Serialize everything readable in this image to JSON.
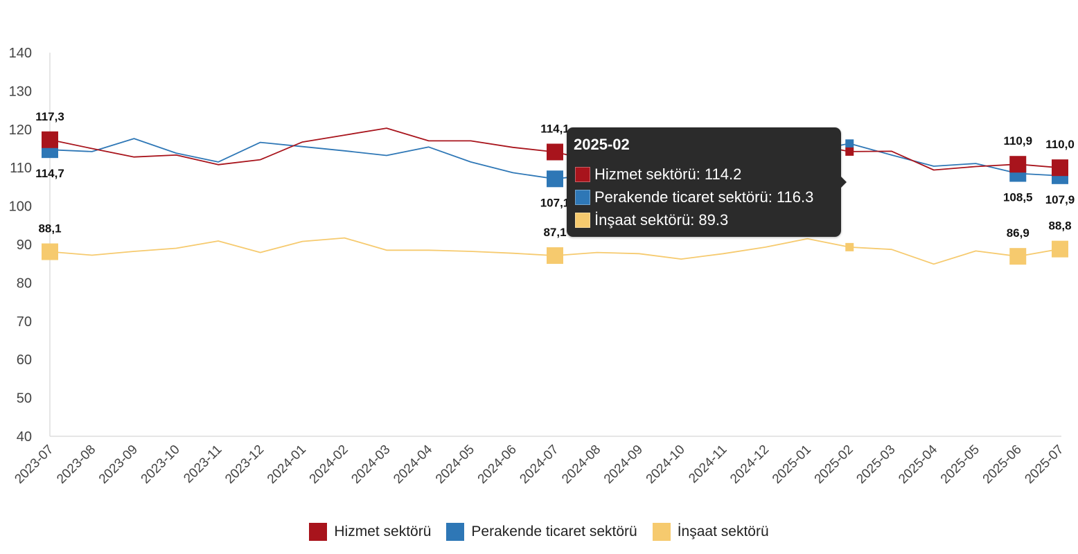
{
  "chart_data": {
    "type": "line",
    "categories": [
      "2023-07",
      "2023-08",
      "2023-09",
      "2023-10",
      "2023-11",
      "2023-12",
      "2024-01",
      "2024-02",
      "2024-03",
      "2024-04",
      "2024-05",
      "2024-06",
      "2024-07",
      "2024-08",
      "2024-09",
      "2024-10",
      "2024-11",
      "2024-12",
      "2025-01",
      "2025-02",
      "2025-03",
      "2025-04",
      "2025-05",
      "2025-06",
      "2025-07"
    ],
    "ylim": [
      40,
      140
    ],
    "yticks": [
      40,
      50,
      60,
      70,
      80,
      90,
      100,
      110,
      120,
      130,
      140
    ],
    "grid": false,
    "legend_position": "bottom",
    "series": [
      {
        "name": "Hizmet sektörü",
        "color": "#a8141c",
        "values": [
          117.3,
          115.0,
          112.8,
          113.3,
          110.8,
          112.1,
          116.7,
          118.5,
          120.3,
          117.0,
          117.0,
          115.3,
          114.1,
          111.6,
          112.4,
          114.2,
          110.9,
          113.4,
          116.3,
          114.2,
          114.3,
          109.4,
          110.3,
          110.9,
          110.0
        ],
        "labels": [
          {
            "index": 0,
            "text": "117,3",
            "pos": "above"
          },
          {
            "index": 12,
            "text": "114,1",
            "pos": "above"
          },
          {
            "index": 23,
            "text": "110,9",
            "pos": "above"
          },
          {
            "index": 24,
            "text": "110,0",
            "pos": "above"
          }
        ]
      },
      {
        "name": "Perakende ticaret sektörü",
        "color": "#2e77b6",
        "values": [
          114.7,
          114.2,
          117.6,
          113.8,
          111.5,
          116.6,
          115.5,
          114.4,
          113.2,
          115.4,
          111.5,
          108.7,
          107.1,
          108.3,
          110.4,
          111.6,
          111.4,
          112.8,
          114.2,
          116.3,
          113.3,
          110.4,
          111.1,
          108.5,
          107.9
        ],
        "labels": [
          {
            "index": 0,
            "text": "114,7",
            "pos": "below"
          },
          {
            "index": 12,
            "text": "107,1",
            "pos": "below"
          },
          {
            "index": 23,
            "text": "108,5",
            "pos": "below"
          },
          {
            "index": 24,
            "text": "107,9",
            "pos": "below"
          }
        ]
      },
      {
        "name": "İnşaat sektörü",
        "color": "#f6ca6e",
        "values": [
          88.1,
          87.2,
          88.2,
          89.0,
          90.9,
          87.9,
          90.8,
          91.7,
          88.5,
          88.5,
          88.2,
          87.7,
          87.1,
          87.9,
          87.6,
          86.2,
          87.6,
          89.3,
          91.5,
          89.3,
          88.7,
          84.9,
          88.3,
          86.9,
          88.8
        ],
        "labels": [
          {
            "index": 0,
            "text": "88,1",
            "pos": "above"
          },
          {
            "index": 12,
            "text": "87,1",
            "pos": "above"
          },
          {
            "index": 23,
            "text": "86,9",
            "pos": "above"
          },
          {
            "index": 24,
            "text": "88,8",
            "pos": "above"
          }
        ]
      }
    ],
    "tooltip": {
      "index": 19,
      "title": "2025-02",
      "rows": [
        {
          "text": "Hizmet sektörü: 114.2",
          "color": "#a8141c"
        },
        {
          "text": "Perakende ticaret sektörü: 116.3",
          "color": "#2e77b6"
        },
        {
          "text": "İnşaat sektörü: 89.3",
          "color": "#f6ca6e"
        }
      ]
    }
  }
}
